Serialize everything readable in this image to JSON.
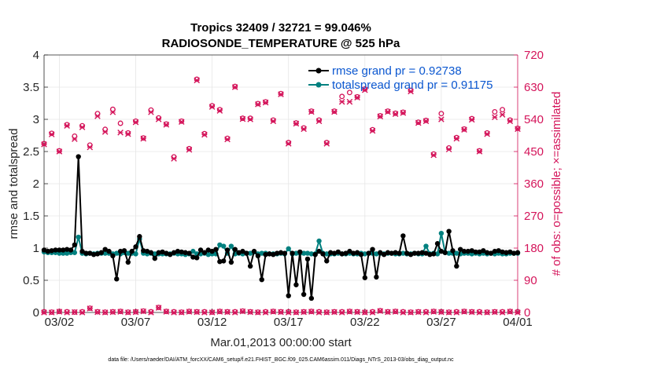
{
  "chart_data": {
    "type": "line",
    "title": "Tropics 32409 / 32721 = 99.046%",
    "subtitle": "RADIOSONDE_TEMPERATURE @ 525 hPa",
    "xlabel": "Mar.01,2013 00:00:00 start",
    "ylabel": "rmse and totalspread",
    "ylabel_right": "# of obs: o=possible; ×=assimilated",
    "footnote": "data file: /Users/raeder/DAI/ATM_forcXX/CAM6_setup/f.e21.FHIST_BGC.f09_025.CAM6assim.011/Diags_NTrS_2013-03/obs_diag_output.nc",
    "xlim": [
      1,
      32
    ],
    "ylim": [
      0,
      4
    ],
    "ylim_right": [
      0,
      720
    ],
    "x_ticks": [
      2,
      7,
      12,
      17,
      22,
      27,
      32
    ],
    "x_tick_labels": [
      "03/02",
      "03/07",
      "03/12",
      "03/17",
      "03/22",
      "03/27",
      "04/01"
    ],
    "y_ticks": [
      0,
      0.5,
      1,
      1.5,
      2,
      2.5,
      3,
      3.5,
      4
    ],
    "y_tick_labels": [
      "0",
      "0.5",
      "1",
      "1.5",
      "2",
      "2.5",
      "3",
      "3.5",
      "4"
    ],
    "y_ticks_right": [
      0,
      90,
      180,
      270,
      360,
      450,
      540,
      630,
      720
    ],
    "y_tick_labels_right": [
      "0",
      "90",
      "180",
      "270",
      "360",
      "450",
      "540",
      "630",
      "720"
    ],
    "legend": [
      {
        "name": "rmse grand pr = 0.92738",
        "color": "#000000"
      },
      {
        "name": "totalspread grand pr = 0.91175",
        "color": "#00807f"
      }
    ],
    "colors": {
      "rmse": "#000000",
      "spread": "#00807f",
      "obs": "#d4145a",
      "legend_text": "#0b57d0"
    },
    "x": [
      1.0,
      1.25,
      1.5,
      1.75,
      2.0,
      2.25,
      2.5,
      2.75,
      3.0,
      3.25,
      3.5,
      3.75,
      4.0,
      4.25,
      4.5,
      4.75,
      5.0,
      5.25,
      5.5,
      5.75,
      6.0,
      6.25,
      6.5,
      6.75,
      7.0,
      7.25,
      7.5,
      7.75,
      8.0,
      8.25,
      8.5,
      8.75,
      9.0,
      9.25,
      9.5,
      9.75,
      10.0,
      10.25,
      10.5,
      10.75,
      11.0,
      11.25,
      11.5,
      11.75,
      12.0,
      12.25,
      12.5,
      12.75,
      13.0,
      13.25,
      13.5,
      13.75,
      14.0,
      14.25,
      14.5,
      14.75,
      15.0,
      15.25,
      15.5,
      15.75,
      16.0,
      16.25,
      16.5,
      16.75,
      17.0,
      17.25,
      17.5,
      17.75,
      18.0,
      18.25,
      18.5,
      18.75,
      19.0,
      19.25,
      19.5,
      19.75,
      20.0,
      20.25,
      20.5,
      20.75,
      21.0,
      21.25,
      21.5,
      21.75,
      22.0,
      22.25,
      22.5,
      22.75,
      23.0,
      23.25,
      23.5,
      23.75,
      24.0,
      24.25,
      24.5,
      24.75,
      25.0,
      25.25,
      25.5,
      25.75,
      26.0,
      26.25,
      26.5,
      26.75,
      27.0,
      27.25,
      27.5,
      27.75,
      28.0,
      28.25,
      28.5,
      28.75,
      29.0,
      29.25,
      29.5,
      29.75,
      30.0,
      30.25,
      30.5,
      30.75,
      31.0,
      31.25,
      31.5,
      31.75,
      32.0
    ],
    "series": [
      {
        "name": "rmse",
        "values": [
          0.97,
          0.95,
          0.96,
          0.97,
          0.97,
          0.97,
          0.98,
          0.97,
          1.05,
          2.42,
          0.95,
          0.92,
          0.92,
          0.9,
          0.91,
          0.93,
          0.98,
          0.95,
          0.88,
          0.52,
          0.95,
          0.96,
          0.78,
          0.95,
          1.02,
          1.18,
          0.96,
          0.95,
          0.93,
          0.84,
          0.93,
          0.94,
          0.92,
          0.9,
          0.93,
          0.95,
          0.94,
          0.93,
          0.92,
          0.86,
          0.85,
          0.97,
          0.93,
          0.97,
          0.95,
          0.98,
          0.79,
          0.8,
          0.97,
          0.78,
          0.98,
          0.93,
          0.95,
          0.92,
          0.72,
          0.95,
          0.88,
          0.51,
          0.9,
          0.91,
          0.9,
          0.92,
          0.93,
          0.92,
          0.26,
          0.92,
          0.43,
          0.94,
          0.28,
          0.83,
          0.22,
          0.9,
          0.95,
          0.91,
          0.8,
          0.93,
          0.92,
          0.94,
          0.91,
          0.92,
          0.95,
          0.92,
          0.93,
          0.9,
          0.54,
          0.92,
          0.98,
          0.55,
          0.93,
          0.9,
          0.93,
          0.92,
          0.93,
          0.92,
          1.19,
          0.92,
          0.9,
          0.92,
          0.92,
          0.93,
          0.92,
          0.9,
          0.91,
          1.07,
          0.95,
          0.93,
          1.26,
          0.96,
          0.72,
          0.98,
          0.95,
          0.95,
          0.96,
          0.94,
          0.94,
          0.96,
          0.93,
          0.92,
          0.95,
          0.96,
          0.94,
          0.93,
          0.94,
          0.92,
          0.93
        ]
      },
      {
        "name": "totalspread",
        "values": [
          0.94,
          0.93,
          0.93,
          0.93,
          0.92,
          0.92,
          0.92,
          0.93,
          0.93,
          1.17,
          0.92,
          0.91,
          0.92,
          0.91,
          0.92,
          0.92,
          0.92,
          0.92,
          0.91,
          0.92,
          0.91,
          0.93,
          0.92,
          0.92,
          0.91,
          1.14,
          0.92,
          0.91,
          0.92,
          0.91,
          0.91,
          0.91,
          0.91,
          0.91,
          0.92,
          0.91,
          0.91,
          0.9,
          0.91,
          0.95,
          0.91,
          0.91,
          0.92,
          0.9,
          0.91,
          0.91,
          1.05,
          1.03,
          0.92,
          1.03,
          0.91,
          0.92,
          0.91,
          0.92,
          0.92,
          0.94,
          0.91,
          0.92,
          0.92,
          0.91,
          0.91,
          0.91,
          0.92,
          0.91,
          0.99,
          0.91,
          0.92,
          0.92,
          0.92,
          0.92,
          0.91,
          0.91,
          1.11,
          0.92,
          0.91,
          0.91,
          0.91,
          0.92,
          0.91,
          0.91,
          0.92,
          0.91,
          0.91,
          0.92,
          0.91,
          0.92,
          0.92,
          0.91,
          0.92,
          0.91,
          0.92,
          0.92,
          0.91,
          0.91,
          0.92,
          0.91,
          0.91,
          0.92,
          0.91,
          0.91,
          1.03,
          0.91,
          0.92,
          0.91,
          1.23,
          0.93,
          0.92,
          0.92,
          0.92,
          0.91,
          0.92,
          0.92,
          0.91,
          0.92,
          0.91,
          0.92,
          0.91,
          0.92,
          0.91,
          0.92,
          0.91,
          0.91,
          0.92,
          0.92,
          0.92
        ]
      }
    ],
    "obs_possible": {
      "x": [
        1.0,
        1.5,
        2.0,
        2.5,
        3.0,
        3.5,
        4.0,
        4.5,
        5.0,
        5.5,
        6.0,
        6.5,
        7.0,
        7.5,
        8.0,
        8.5,
        9.0,
        9.5,
        10.0,
        10.5,
        11.0,
        11.5,
        12.0,
        12.5,
        13.0,
        13.5,
        14.0,
        14.5,
        15.0,
        15.5,
        16.0,
        16.5,
        17.0,
        17.5,
        18.0,
        18.5,
        19.0,
        19.5,
        20.0,
        20.5,
        21.0,
        21.5,
        22.0,
        22.5,
        23.0,
        23.5,
        24.0,
        24.5,
        25.0,
        25.5,
        26.0,
        26.5,
        27.0,
        27.5,
        28.0,
        28.5,
        29.0,
        29.5,
        30.0,
        30.5,
        31.0,
        31.5,
        32.0
      ],
      "values": [
        472,
        501,
        452,
        525,
        493,
        522,
        468,
        556,
        512,
        568,
        529,
        502,
        535,
        488,
        566,
        544,
        527,
        435,
        535,
        458,
        652,
        500,
        578,
        567,
        487,
        632,
        543,
        543,
        584,
        589,
        538,
        612,
        475,
        530,
        516,
        563,
        538,
        475,
        563,
        604,
        615,
        603,
        625,
        511,
        550,
        563,
        557,
        560,
        621,
        532,
        537,
        443,
        556,
        460,
        489,
        513,
        542,
        452,
        502,
        561,
        567,
        538,
        515
      ]
    },
    "obs_assimilated": {
      "x": [
        1.0,
        1.5,
        2.0,
        2.5,
        3.0,
        3.5,
        4.0,
        4.5,
        5.0,
        5.5,
        6.0,
        6.5,
        7.0,
        7.5,
        8.0,
        8.5,
        9.0,
        9.5,
        10.0,
        10.5,
        11.0,
        11.5,
        12.0,
        12.5,
        13.0,
        13.5,
        14.0,
        14.5,
        15.0,
        15.5,
        16.0,
        16.5,
        17.0,
        17.5,
        18.0,
        18.5,
        19.0,
        19.5,
        20.0,
        20.5,
        21.0,
        21.5,
        22.0,
        22.5,
        23.0,
        23.5,
        24.0,
        24.5,
        25.0,
        25.5,
        26.0,
        26.5,
        27.0,
        27.5,
        28.0,
        28.5,
        29.0,
        29.5,
        30.0,
        30.5,
        31.0,
        31.5,
        32.0
      ],
      "values": [
        470,
        498,
        450,
        522,
        485,
        518,
        462,
        549,
        505,
        560,
        503,
        499,
        532,
        486,
        560,
        540,
        525,
        430,
        533,
        455,
        649,
        497,
        575,
        564,
        484,
        630,
        541,
        540,
        582,
        587,
        535,
        610,
        472,
        528,
        513,
        561,
        535,
        472,
        561,
        589,
        589,
        601,
        622,
        508,
        548,
        561,
        555,
        558,
        618,
        530,
        535,
        440,
        540,
        456,
        486,
        511,
        539,
        450,
        499,
        546,
        553,
        535,
        513
      ]
    },
    "obs_possible_bottom": {
      "x": [
        1.0,
        1.5,
        2.0,
        2.5,
        3.0,
        3.5,
        4.0,
        4.5,
        5.0,
        5.5,
        6.0,
        6.5,
        7.0,
        7.5,
        8.0,
        8.5,
        9.0,
        9.5,
        10.0,
        10.5,
        11.0,
        11.5,
        12.0,
        12.5,
        13.0,
        13.5,
        14.0,
        14.5,
        15.0,
        15.5,
        16.0,
        16.5,
        17.0,
        17.5,
        18.0,
        18.5,
        19.0,
        19.5,
        20.0,
        20.5,
        21.0,
        21.5,
        22.0,
        22.5,
        23.0,
        23.5,
        24.0,
        24.5,
        25.0,
        25.5,
        26.0,
        26.5,
        27.0,
        27.5,
        28.0,
        28.5,
        29.0,
        29.5,
        30.0,
        30.5,
        31.0,
        31.5,
        32.0
      ],
      "values": [
        2,
        1,
        3,
        2,
        1,
        2,
        12,
        2,
        1,
        2,
        3,
        1,
        2,
        4,
        2,
        14,
        3,
        2,
        1,
        3,
        2,
        2,
        1,
        3,
        2,
        2,
        4,
        2,
        1,
        2,
        3,
        2,
        2,
        1,
        2,
        3,
        2,
        1,
        2,
        2,
        3,
        2,
        1,
        2,
        5,
        2,
        3,
        2,
        1,
        2,
        2,
        3,
        2,
        1,
        2,
        3,
        2,
        2,
        1,
        2,
        2,
        3,
        2
      ]
    },
    "obs_assimilated_bottom": {
      "x": [
        1.0,
        1.5,
        2.0,
        2.5,
        3.0,
        3.5,
        4.0,
        4.5,
        5.0,
        5.5,
        6.0,
        6.5,
        7.0,
        7.5,
        8.0,
        8.5,
        9.0,
        9.5,
        10.0,
        10.5,
        11.0,
        11.5,
        12.0,
        12.5,
        13.0,
        13.5,
        14.0,
        14.5,
        15.0,
        15.5,
        16.0,
        16.5,
        17.0,
        17.5,
        18.0,
        18.5,
        19.0,
        19.5,
        20.0,
        20.5,
        21.0,
        21.5,
        22.0,
        22.5,
        23.0,
        23.5,
        24.0,
        24.5,
        25.0,
        25.5,
        26.0,
        26.5,
        27.0,
        27.5,
        28.0,
        28.5,
        29.0,
        29.5,
        30.0,
        30.5,
        31.0,
        31.5,
        32.0
      ],
      "values": [
        0,
        0,
        2,
        0,
        1,
        0,
        11,
        1,
        0,
        1,
        2,
        0,
        1,
        3,
        0,
        13,
        2,
        0,
        0,
        2,
        1,
        0,
        0,
        2,
        1,
        0,
        3,
        1,
        0,
        0,
        2,
        1,
        0,
        0,
        1,
        2,
        0,
        0,
        1,
        0,
        2,
        1,
        0,
        0,
        4,
        1,
        2,
        0,
        0,
        1,
        0,
        2,
        1,
        0,
        0,
        2,
        1,
        0,
        0,
        1,
        0,
        2,
        0
      ]
    }
  }
}
